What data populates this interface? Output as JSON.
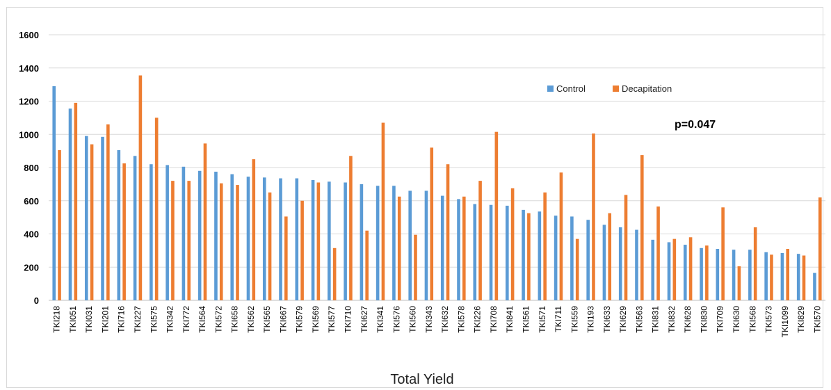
{
  "chart_data": {
    "type": "bar",
    "title": "",
    "xlabel": "Total Yield",
    "ylabel": "",
    "ylim": [
      0,
      1600
    ],
    "yticks": [
      0,
      200,
      400,
      600,
      800,
      1000,
      1200,
      1400,
      1600
    ],
    "grid": true,
    "legend_position": "top-right",
    "annotation": "p=0.047",
    "categories": [
      "TKI218",
      "TKI051",
      "TKI031",
      "TKI201",
      "TKI716",
      "TKI227",
      "TKI575",
      "TKI342",
      "TKI772",
      "TKI564",
      "TKI572",
      "TKI658",
      "TKI562",
      "TKI565",
      "TKI667",
      "TKI579",
      "TKI569",
      "TKI577",
      "TKI710",
      "TKI627",
      "TKI341",
      "TKI576",
      "TKI560",
      "TKI343",
      "TKI632",
      "TKI578",
      "TKI226",
      "TKI708",
      "TKI841",
      "TKI561",
      "TKI571",
      "TKI711",
      "TKI559",
      "TKI193",
      "TKI633",
      "TKI629",
      "TKI563",
      "TKI831",
      "TKI832",
      "TKI628",
      "TKI830",
      "TKI709",
      "TKI630",
      "TKI568",
      "TKI573",
      "TKI1099",
      "TKI829",
      "TKI570"
    ],
    "series": [
      {
        "name": "Control",
        "color": "#5b9bd5",
        "values": [
          1290,
          1155,
          990,
          985,
          905,
          870,
          820,
          815,
          805,
          780,
          775,
          760,
          745,
          740,
          735,
          735,
          725,
          715,
          710,
          700,
          690,
          690,
          660,
          660,
          630,
          610,
          580,
          575,
          570,
          545,
          535,
          510,
          505,
          485,
          455,
          440,
          425,
          365,
          350,
          335,
          315,
          310,
          305,
          305,
          290,
          285,
          280,
          165
        ]
      },
      {
        "name": "Decapitation",
        "color": "#ed7d31",
        "values": [
          905,
          1190,
          940,
          1060,
          825,
          1355,
          1100,
          720,
          720,
          945,
          705,
          695,
          850,
          650,
          505,
          600,
          710,
          315,
          870,
          420,
          1070,
          625,
          395,
          920,
          820,
          625,
          720,
          1015,
          675,
          525,
          650,
          770,
          370,
          1005,
          525,
          635,
          875,
          565,
          370,
          380,
          330,
          560,
          205,
          440,
          275,
          310,
          270,
          620
        ]
      }
    ]
  }
}
